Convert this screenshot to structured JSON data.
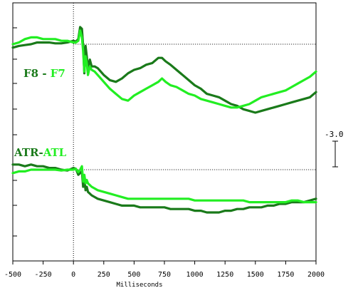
{
  "chart_data": {
    "type": "line",
    "xlabel": "Milliseconds",
    "xlim": [
      -500,
      2000
    ],
    "x_ticks": [
      -500,
      -250,
      0,
      250,
      500,
      750,
      1000,
      1250,
      1500,
      1750,
      2000
    ],
    "x_tick_labels": [
      "-500",
      "-250",
      "0",
      "250",
      "500",
      "750",
      "1000",
      "1250",
      "1500",
      "1750",
      "2000"
    ],
    "scale_bar_label": "-3.0",
    "colors": {
      "dark": "#1a7a1a",
      "light": "#22ee22"
    },
    "panels": [
      {
        "label_parts": [
          {
            "text": "F8",
            "color": "dark"
          },
          {
            "text": " - ",
            "color": "dark"
          },
          {
            "text": "F7",
            "color": "light"
          }
        ],
        "series": [
          {
            "name": "F8",
            "color": "dark",
            "x": [
              -500,
              -450,
              -400,
              -350,
              -300,
              -250,
              -200,
              -150,
              -100,
              -50,
              0,
              20,
              40,
              55,
              70,
              80,
              90,
              100,
              110,
              120,
              135,
              150,
              175,
              200,
              250,
              300,
              350,
              400,
              450,
              500,
              550,
              600,
              650,
              700,
              730,
              760,
              800,
              850,
              900,
              950,
              1000,
              1050,
              1100,
              1150,
              1200,
              1250,
              1300,
              1350,
              1400,
              1450,
              1500,
              1550,
              1600,
              1650,
              1700,
              1750,
              1800,
              1850,
              1900,
              1950,
              2000
            ],
            "y": [
              -0.4,
              -0.2,
              -0.1,
              0.0,
              0.2,
              0.2,
              0.2,
              0.1,
              0.1,
              0.2,
              0.4,
              0.3,
              0.6,
              2.0,
              1.8,
              -0.2,
              -3.4,
              -0.2,
              -1.4,
              -2.8,
              -1.8,
              -2.6,
              -2.6,
              -2.8,
              -3.6,
              -4.2,
              -4.4,
              -4.0,
              -3.4,
              -3.0,
              -2.8,
              -2.4,
              -2.2,
              -1.6,
              -1.6,
              -2.0,
              -2.4,
              -3.0,
              -3.6,
              -4.2,
              -4.8,
              -5.2,
              -5.8,
              -6.0,
              -6.2,
              -6.6,
              -7.0,
              -7.2,
              -7.6,
              -7.8,
              -8.0,
              -7.8,
              -7.6,
              -7.4,
              -7.2,
              -7.0,
              -6.8,
              -6.6,
              -6.4,
              -6.2,
              -5.6
            ]
          },
          {
            "name": "F7",
            "color": "light",
            "x": [
              -500,
              -450,
              -400,
              -350,
              -300,
              -250,
              -200,
              -150,
              -100,
              -50,
              0,
              20,
              40,
              55,
              70,
              80,
              90,
              100,
              110,
              120,
              135,
              150,
              175,
              200,
              250,
              300,
              350,
              400,
              450,
              500,
              550,
              600,
              650,
              700,
              730,
              760,
              800,
              850,
              900,
              950,
              1000,
              1050,
              1100,
              1150,
              1200,
              1250,
              1300,
              1350,
              1400,
              1450,
              1500,
              1550,
              1600,
              1650,
              1700,
              1750,
              1800,
              1850,
              1900,
              1950,
              2000
            ],
            "y": [
              0.0,
              0.2,
              0.6,
              0.8,
              0.8,
              0.6,
              0.6,
              0.6,
              0.4,
              0.4,
              0.2,
              0.2,
              0.4,
              1.6,
              0.8,
              -0.8,
              -3.2,
              -1.4,
              -2.2,
              -3.6,
              -2.6,
              -3.0,
              -3.2,
              -3.6,
              -4.4,
              -5.2,
              -5.8,
              -6.4,
              -6.6,
              -6.0,
              -5.6,
              -5.2,
              -4.8,
              -4.4,
              -4.0,
              -4.4,
              -4.8,
              -5.0,
              -5.4,
              -5.8,
              -6.0,
              -6.4,
              -6.6,
              -6.8,
              -7.0,
              -7.2,
              -7.4,
              -7.4,
              -7.2,
              -7.0,
              -6.6,
              -6.2,
              -6.0,
              -5.8,
              -5.6,
              -5.4,
              -5.0,
              -4.6,
              -4.2,
              -3.8,
              -3.2
            ]
          }
        ]
      },
      {
        "label_parts": [
          {
            "text": "ATR",
            "color": "dark"
          },
          {
            "text": "-",
            "color": "dark"
          },
          {
            "text": "ATL",
            "color": "light"
          }
        ],
        "series": [
          {
            "name": "ATR",
            "color": "dark",
            "x": [
              -500,
              -450,
              -400,
              -350,
              -300,
              -250,
              -200,
              -150,
              -100,
              -50,
              0,
              20,
              40,
              55,
              70,
              80,
              90,
              100,
              110,
              120,
              135,
              150,
              175,
              200,
              250,
              300,
              350,
              400,
              450,
              500,
              550,
              600,
              650,
              700,
              750,
              800,
              850,
              900,
              950,
              1000,
              1050,
              1100,
              1150,
              1200,
              1250,
              1300,
              1350,
              1400,
              1450,
              1500,
              1550,
              1600,
              1650,
              1700,
              1750,
              1800,
              1850,
              1900,
              1950,
              2000
            ],
            "y": [
              0.6,
              0.6,
              0.4,
              0.6,
              0.4,
              0.4,
              0.2,
              0.2,
              0.0,
              -0.1,
              0.2,
              0.1,
              -0.6,
              -0.4,
              -0.2,
              -2.0,
              -1.2,
              -2.4,
              -2.0,
              -2.6,
              -2.8,
              -3.0,
              -3.2,
              -3.4,
              -3.6,
              -3.8,
              -4.0,
              -4.2,
              -4.2,
              -4.2,
              -4.4,
              -4.4,
              -4.4,
              -4.4,
              -4.4,
              -4.6,
              -4.6,
              -4.6,
              -4.6,
              -4.8,
              -4.8,
              -5.0,
              -5.0,
              -5.0,
              -4.8,
              -4.8,
              -4.6,
              -4.6,
              -4.4,
              -4.4,
              -4.4,
              -4.2,
              -4.2,
              -4.0,
              -4.0,
              -3.8,
              -3.8,
              -3.8,
              -3.6,
              -3.4
            ]
          },
          {
            "name": "ATL",
            "color": "light",
            "x": [
              -500,
              -450,
              -400,
              -350,
              -300,
              -250,
              -200,
              -150,
              -100,
              -50,
              0,
              20,
              40,
              55,
              70,
              80,
              90,
              100,
              110,
              120,
              135,
              150,
              175,
              200,
              250,
              300,
              350,
              400,
              450,
              500,
              550,
              600,
              650,
              700,
              750,
              800,
              850,
              900,
              950,
              1000,
              1050,
              1100,
              1150,
              1200,
              1250,
              1300,
              1350,
              1400,
              1450,
              1500,
              1550,
              1600,
              1650,
              1700,
              1750,
              1800,
              1850,
              1900,
              1950,
              2000
            ],
            "y": [
              -0.4,
              -0.2,
              -0.2,
              0.0,
              0.0,
              0.0,
              0.0,
              0.0,
              -0.1,
              0.0,
              0.0,
              0.1,
              -0.3,
              0.0,
              0.4,
              -1.4,
              -0.6,
              -1.6,
              -1.2,
              -1.6,
              -1.8,
              -2.0,
              -2.2,
              -2.4,
              -2.6,
              -2.8,
              -3.0,
              -3.2,
              -3.4,
              -3.4,
              -3.4,
              -3.4,
              -3.4,
              -3.4,
              -3.4,
              -3.4,
              -3.4,
              -3.4,
              -3.4,
              -3.6,
              -3.6,
              -3.6,
              -3.6,
              -3.6,
              -3.6,
              -3.6,
              -3.6,
              -3.6,
              -3.8,
              -3.8,
              -3.8,
              -3.8,
              -3.8,
              -3.8,
              -3.8,
              -3.6,
              -3.6,
              -3.8,
              -3.8,
              -3.8
            ]
          }
        ]
      }
    ]
  }
}
